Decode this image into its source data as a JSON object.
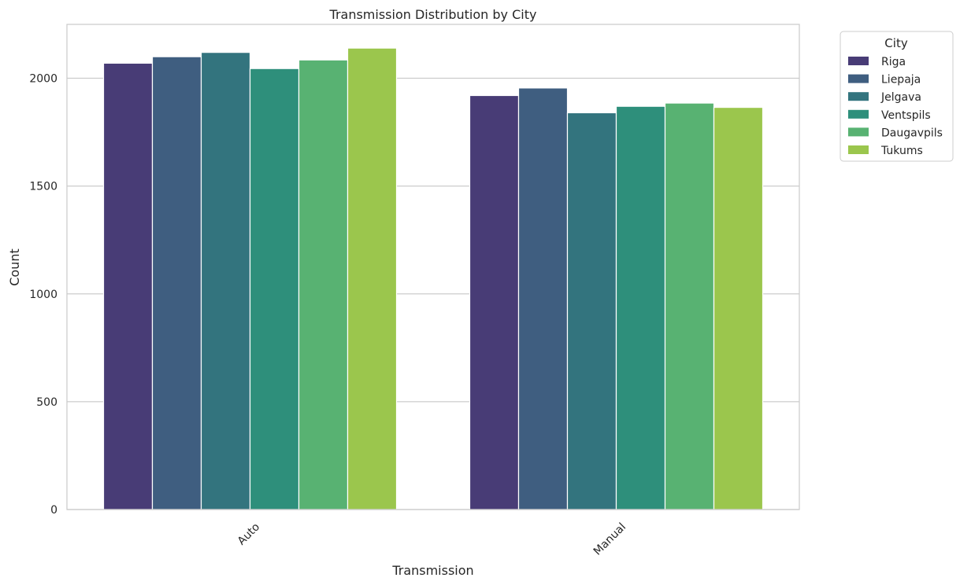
{
  "chart_data": {
    "type": "bar",
    "title": "Transmission Distribution by City",
    "xlabel": "Transmission",
    "ylabel": "Count",
    "categories": [
      "Auto",
      "Manual"
    ],
    "ylim": [
      0,
      2250
    ],
    "yticks": [
      "0",
      "500",
      "1000",
      "1500",
      "2000"
    ],
    "grid": "horizontal",
    "legend": {
      "title": "City",
      "placement": "outside-top-right"
    },
    "series": [
      {
        "name": "Riga",
        "color": "#483c76",
        "values": [
          2070,
          1920
        ]
      },
      {
        "name": "Liepaja",
        "color": "#3f5e80",
        "values": [
          2100,
          1955
        ]
      },
      {
        "name": "Jelgava",
        "color": "#33747e",
        "values": [
          2120,
          1840
        ]
      },
      {
        "name": "Ventspils",
        "color": "#2e8f7b",
        "values": [
          2045,
          1870
        ]
      },
      {
        "name": "Daugavpils",
        "color": "#58b272",
        "values": [
          2085,
          1885
        ]
      },
      {
        "name": "Tukums",
        "color": "#9bc64d",
        "values": [
          2140,
          1865
        ]
      }
    ]
  }
}
